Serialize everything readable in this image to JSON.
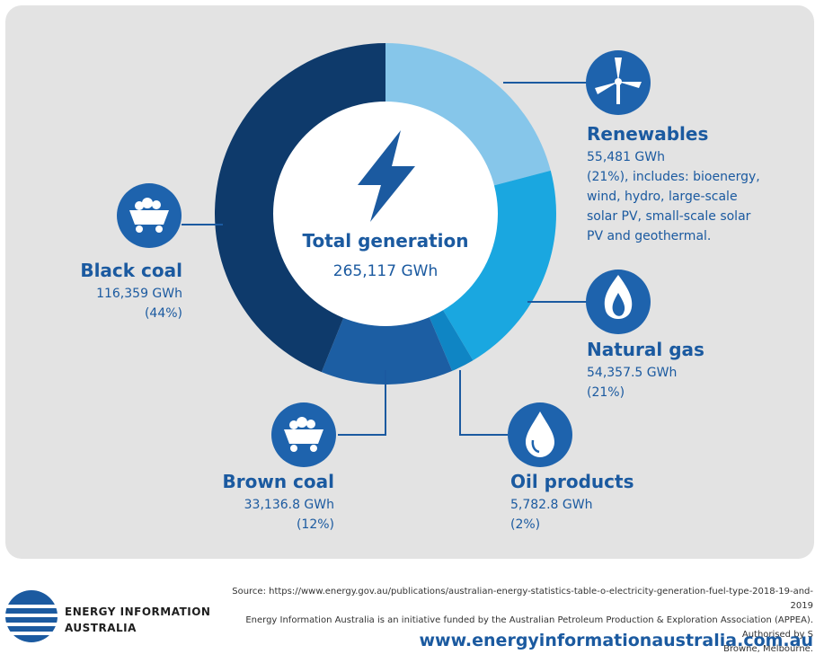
{
  "chart_data": {
    "type": "pie",
    "variant": "donut",
    "center_title": "Total generation",
    "center_value": "265,117 GWh",
    "slices": [
      {
        "name": "Renewables",
        "value": 55481,
        "value_label": "55,481 GWh",
        "share_label": "(21%), includes: bioenergy, wind, hydro, large-scale solar PV, small-scale solar PV and geothermal.",
        "color": "#86c6ea"
      },
      {
        "name": "Natural gas",
        "value": 54357.5,
        "value_label": "54,357.5 GWh",
        "share_label": "(21%)",
        "color": "#1aa7e0"
      },
      {
        "name": "Oil products",
        "value": 5782.8,
        "value_label": "5,782.8 GWh",
        "share_label": "(2%)",
        "color": "#0f85c4"
      },
      {
        "name": "Brown coal",
        "value": 33136.8,
        "value_label": "33,136.8 GWh",
        "share_label": "(12%)",
        "color": "#1c5ea3"
      },
      {
        "name": "Black coal",
        "value": 116359,
        "value_label": "116,359 GWh",
        "share_label": "(44%)",
        "color": "#0e3a6b"
      }
    ]
  },
  "labels": {
    "renewables": {
      "title": "Renewables",
      "value": "55,481 GWh",
      "lines": [
        "(21%), includes: bioenergy,",
        "wind, hydro, large-scale",
        "solar PV, small-scale solar",
        "PV and geothermal."
      ]
    },
    "natural_gas": {
      "title": "Natural gas",
      "value": "54,357.5 GWh",
      "share": "(21%)"
    },
    "oil_products": {
      "title": "Oil products",
      "value": "5,782.8 GWh",
      "share": "(2%)"
    },
    "brown_coal": {
      "title": "Brown coal",
      "value": "33,136.8 GWh",
      "share": "(12%)"
    },
    "black_coal": {
      "title": "Black coal",
      "value": "116,359 GWh",
      "share": "(44%)"
    }
  },
  "icons": {
    "renewables": "wind-turbine-icon",
    "natural_gas": "flame-icon",
    "oil_products": "droplet-icon",
    "brown_coal": "coal-cart-icon",
    "black_coal": "coal-cart-icon",
    "center": "lightning-bolt-icon"
  },
  "colors": {
    "accent": "#1b5aa0",
    "panel": "#e3e3e3",
    "icon_circle": "#1e63ad"
  },
  "footer": {
    "source_line1": "Source: https://www.energy.gov.au/publications/australian-energy-statistics-table-o-electricity-generation-fuel-type-2018-19-and-2019",
    "source_line2": "Energy Information Australia is an initiative funded by the Australian Petroleum Production & Exploration Association (APPEA). Authorised by S",
    "source_line3": "Browne, Melbourne.",
    "url": "www.energyinformationaustralia.com.au",
    "brand_line1": "ENERGY INFORMATION",
    "brand_line2": "AUSTRALIA"
  }
}
